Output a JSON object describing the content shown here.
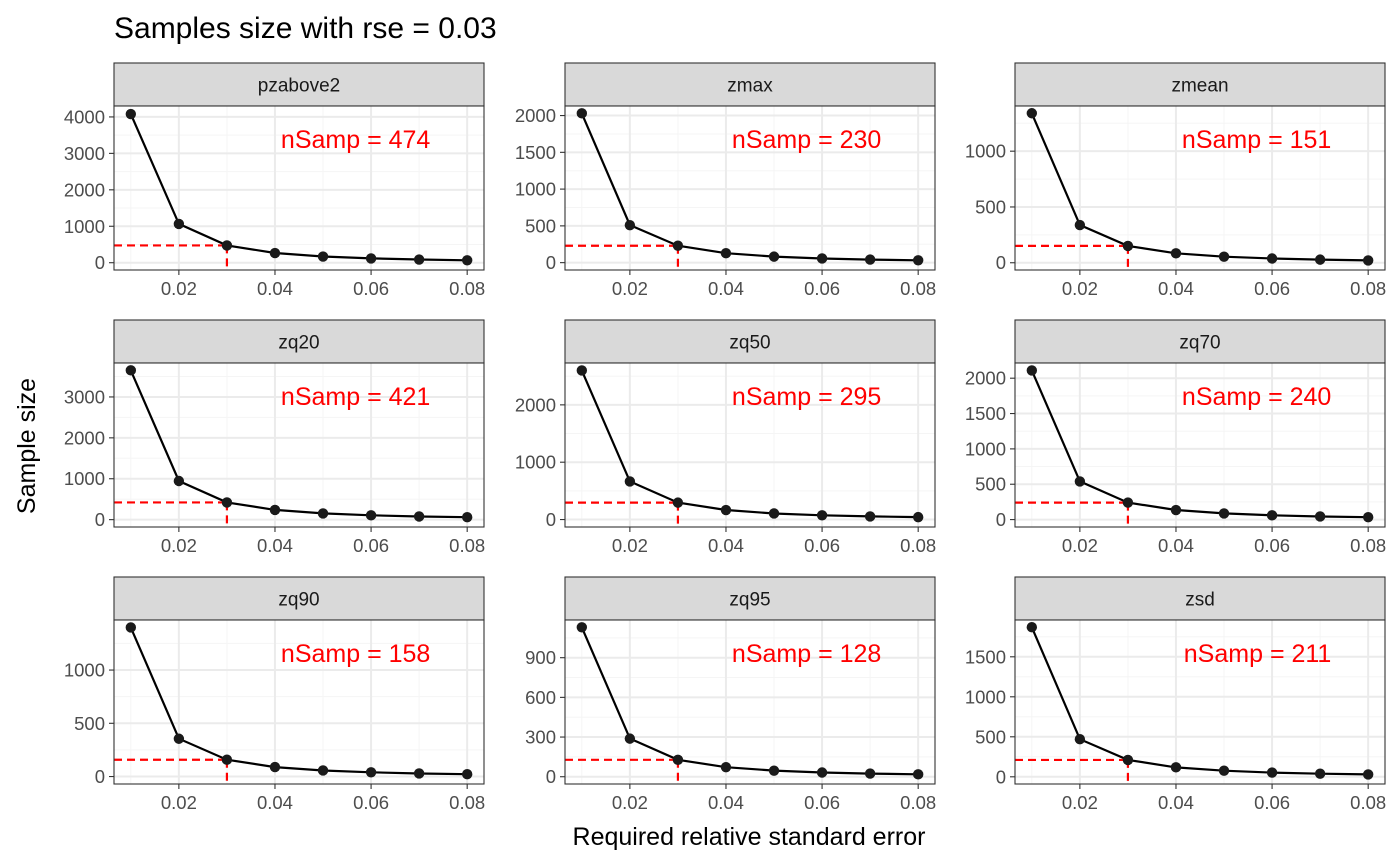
{
  "chart_data": {
    "type": "line",
    "title": "Samples size with rse = 0.03",
    "xlabel": "Required relative standard error",
    "ylabel": "Sample size",
    "target_rse": 0.03,
    "x": [
      0.01,
      0.02,
      0.03,
      0.04,
      0.05,
      0.06,
      0.07,
      0.08
    ],
    "xlim": [
      0.0065,
      0.0835
    ],
    "xticks": [
      0.02,
      0.04,
      0.06,
      0.08
    ],
    "xtick_labels": [
      "0.02",
      "0.04",
      "0.06",
      "0.08"
    ],
    "grid": true,
    "facets": [
      {
        "name": "pzabove2",
        "annotation": "nSamp = 474",
        "ylim": [
          -200,
          4300
        ],
        "yticks": [
          0,
          1000,
          2000,
          3000,
          4000
        ],
        "ytick_labels": [
          "0",
          "1000",
          "2000",
          "3000",
          "4000"
        ],
        "values": [
          4080,
          1065,
          474,
          266,
          170,
          118,
          87,
          67
        ]
      },
      {
        "name": "zmax",
        "annotation": "nSamp = 230",
        "ylim": [
          -100,
          2130
        ],
        "yticks": [
          0,
          500,
          1000,
          1500,
          2000
        ],
        "ytick_labels": [
          "0",
          "500",
          "1000",
          "1500",
          "2000"
        ],
        "values": [
          2030,
          510,
          230,
          128,
          82,
          57,
          42,
          32
        ]
      },
      {
        "name": "zmean",
        "annotation": "nSamp = 151",
        "ylim": [
          -65,
          1405
        ],
        "yticks": [
          0,
          500,
          1000
        ],
        "ytick_labels": [
          "0",
          "500",
          "1000"
        ],
        "values": [
          1340,
          338,
          151,
          85,
          54,
          38,
          28,
          21
        ]
      },
      {
        "name": "zq20",
        "annotation": "nSamp = 421",
        "ylim": [
          -180,
          3830
        ],
        "yticks": [
          0,
          1000,
          2000,
          3000
        ],
        "ytick_labels": [
          "0",
          "1000",
          "2000",
          "3000"
        ],
        "values": [
          3650,
          945,
          421,
          237,
          152,
          105,
          77,
          59
        ]
      },
      {
        "name": "zq50",
        "annotation": "nSamp = 295",
        "ylim": [
          -130,
          2730
        ],
        "yticks": [
          0,
          1000,
          2000
        ],
        "ytick_labels": [
          "0",
          "1000",
          "2000"
        ],
        "values": [
          2600,
          665,
          295,
          166,
          106,
          74,
          54,
          42
        ]
      },
      {
        "name": "zq70",
        "annotation": "nSamp = 240",
        "ylim": [
          -105,
          2215
        ],
        "yticks": [
          0,
          500,
          1000,
          1500,
          2000
        ],
        "ytick_labels": [
          "0",
          "500",
          "1000",
          "1500",
          "2000"
        ],
        "values": [
          2110,
          540,
          240,
          135,
          87,
          60,
          44,
          34
        ]
      },
      {
        "name": "zq90",
        "annotation": "nSamp = 158",
        "ylim": [
          -70,
          1470
        ],
        "yticks": [
          0,
          500,
          1000
        ],
        "ytick_labels": [
          "0",
          "500",
          "1000"
        ],
        "values": [
          1400,
          355,
          158,
          89,
          57,
          40,
          29,
          22
        ]
      },
      {
        "name": "zq95",
        "annotation": "nSamp = 128",
        "ylim": [
          -55,
          1185
        ],
        "yticks": [
          0,
          300,
          600,
          900
        ],
        "ytick_labels": [
          "0",
          "300",
          "600",
          "900"
        ],
        "values": [
          1130,
          288,
          128,
          72,
          46,
          32,
          24,
          18
        ]
      },
      {
        "name": "zsd",
        "annotation": "nSamp = 211",
        "ylim": [
          -90,
          1960
        ],
        "yticks": [
          0,
          500,
          1000,
          1500
        ],
        "ytick_labels": [
          "0",
          "500",
          "1000",
          "1500"
        ],
        "values": [
          1870,
          470,
          211,
          118,
          76,
          53,
          39,
          30
        ]
      }
    ],
    "colors": {
      "line": "#000000",
      "point": "#1a1a1a",
      "reference": "#ff0000",
      "annotation": "#ff0000",
      "strip_fill": "#d9d9d9",
      "panel_border": "#333333",
      "grid_major": "#ebebeb",
      "grid_minor": "#f5f5f5"
    }
  }
}
